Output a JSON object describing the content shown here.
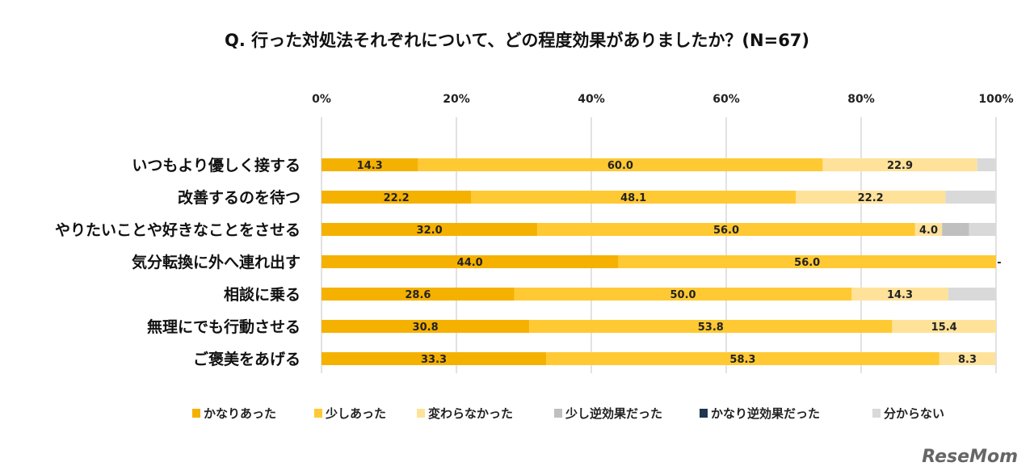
{
  "chart_data": {
    "type": "bar",
    "orientation": "horizontal",
    "stacked": true,
    "title": "Q. 行った対処法それぞれについて、どの程度効果がありましたか？(N=67)",
    "xlim": [
      0,
      100
    ],
    "x_ticks": [
      "0%",
      "20%",
      "40%",
      "60%",
      "80%",
      "100%"
    ],
    "x_axis_position": "top",
    "grid": true,
    "legend_position": "bottom",
    "categories": [
      "いつもより優しく接する",
      "改善するのを待つ",
      "やりたいことや好きなことをさせる",
      "気分転換に外へ連れ出す",
      "相談に乗る",
      "無理にでも行動させる",
      "ご褒美をあげる"
    ],
    "series": [
      {
        "name": "かなりあった",
        "color": "#F5B100",
        "values": [
          14.3,
          22.2,
          32.0,
          44.0,
          28.6,
          30.8,
          33.3
        ],
        "labels": [
          "14.3",
          "22.2",
          "32.0",
          "44.0",
          "28.6",
          "30.8",
          "33.3"
        ]
      },
      {
        "name": "少しあった",
        "color": "#FFC933",
        "values": [
          60.0,
          48.1,
          56.0,
          56.0,
          50.0,
          53.8,
          58.3
        ],
        "labels": [
          "60.0",
          "48.1",
          "56.0",
          "56.0",
          "50.0",
          "53.8",
          "58.3"
        ]
      },
      {
        "name": "変わらなかった",
        "color": "#FFE29A",
        "values": [
          22.9,
          22.2,
          4.0,
          0,
          14.3,
          15.4,
          8.3
        ],
        "labels": [
          "22.9",
          "22.2",
          "4.0",
          "-",
          "14.3",
          "15.4",
          "8.3"
        ]
      },
      {
        "name": "少し逆効果だった",
        "color": "#BFBFBF",
        "values": [
          0,
          0,
          4.0,
          0,
          0,
          0,
          0
        ],
        "labels": [
          "",
          "",
          "",
          "",
          "",
          "",
          ""
        ]
      },
      {
        "name": "かなり逆効果だった",
        "color": "#1F3550",
        "values": [
          0,
          0,
          0,
          0,
          0,
          0,
          0
        ],
        "labels": [
          "",
          "",
          "",
          "",
          "",
          "",
          ""
        ]
      },
      {
        "name": "分からない",
        "color": "#D9D9D9",
        "values": [
          2.8,
          7.4,
          4.0,
          0,
          7.1,
          0,
          0
        ],
        "labels": [
          "",
          "",
          "",
          "",
          "",
          "",
          ""
        ]
      }
    ]
  },
  "watermark": "ReseMom"
}
